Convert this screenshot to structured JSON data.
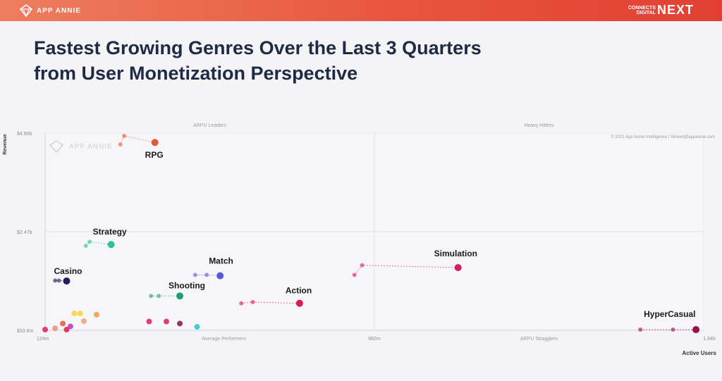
{
  "header": {
    "brand": "APP ANNIE",
    "event_line1": "CONNECTS",
    "event_line2": "DIGITAL",
    "event_big": "NEXT",
    "accent": "#e8553f"
  },
  "slide": {
    "title_line1": "Fastest Growing Genres Over the Last 3 Quarters",
    "title_line2": "from User Monetization Perspective"
  },
  "chart_data": {
    "type": "scatter",
    "title": "",
    "xlabel": "Active Users",
    "ylabel": "Revenue",
    "x_ticks": [
      {
        "value": 124,
        "label": "124m"
      },
      {
        "value": 982,
        "label": "982m"
      },
      {
        "value": 1840,
        "label": "1.84b"
      }
    ],
    "y_ticks": [
      {
        "value": 33.6,
        "label": "$33.6m"
      },
      {
        "value": 2470,
        "label": "$2.47b"
      },
      {
        "value": 4900,
        "label": "$4.90b"
      }
    ],
    "xlim": [
      124,
      1840
    ],
    "ylim": [
      33.6,
      4900
    ],
    "grid": true,
    "quadrants": {
      "top_left": "ARPU Leaders",
      "top_right": "Heavy Hitters",
      "bottom_left": "Average Performers",
      "bottom_right": "ARPU Stragglers"
    },
    "watermark": "APP ANNIE",
    "copyright": "© 2021 App Annie Intelligence | blinked@appannie.com",
    "series": [
      {
        "name": "RPG",
        "color": "#e8553f",
        "points": [
          [
            320,
            4620
          ],
          [
            330,
            4830
          ],
          [
            410,
            4670
          ]
        ]
      },
      {
        "name": "Strategy",
        "color": "#2bbf9c",
        "points": [
          [
            230,
            2120
          ],
          [
            240,
            2220
          ],
          [
            296,
            2150
          ]
        ]
      },
      {
        "name": "Casino",
        "color": "#1e1e5c",
        "points": [
          [
            150,
            1260
          ],
          [
            160,
            1260
          ],
          [
            180,
            1250
          ]
        ]
      },
      {
        "name": "Match",
        "color": "#5a5ad6",
        "points": [
          [
            515,
            1400
          ],
          [
            545,
            1400
          ],
          [
            580,
            1380
          ]
        ]
      },
      {
        "name": "Shooting",
        "color": "#21a06f",
        "points": [
          [
            400,
            880
          ],
          [
            420,
            880
          ],
          [
            475,
            880
          ]
        ]
      },
      {
        "name": "Action",
        "color": "#d91d4e",
        "points": [
          [
            635,
            700
          ],
          [
            665,
            730
          ],
          [
            787,
            700
          ]
        ]
      },
      {
        "name": "Simulation",
        "color": "#d91d5e",
        "points": [
          [
            930,
            1400
          ],
          [
            950,
            1640
          ],
          [
            1200,
            1580
          ]
        ]
      },
      {
        "name": "HyperCasual",
        "color": "#9c0f4a",
        "points": [
          [
            1675,
            50
          ],
          [
            1760,
            50
          ],
          [
            1820,
            50
          ]
        ]
      }
    ],
    "unlabeled_points": [
      {
        "x": 124,
        "y": 50,
        "color": "#d91d5e"
      },
      {
        "x": 150,
        "y": 80,
        "color": "#f28a7a"
      },
      {
        "x": 170,
        "y": 200,
        "color": "#e8553f"
      },
      {
        "x": 190,
        "y": 130,
        "color": "#c22fc9"
      },
      {
        "x": 200,
        "y": 450,
        "color": "#f5d442"
      },
      {
        "x": 215,
        "y": 450,
        "color": "#f5d442"
      },
      {
        "x": 225,
        "y": 260,
        "color": "#f29e7a"
      },
      {
        "x": 258,
        "y": 420,
        "color": "#f39a3a"
      },
      {
        "x": 180,
        "y": 50,
        "color": "#d91d4e"
      },
      {
        "x": 395,
        "y": 250,
        "color": "#d91d5e"
      },
      {
        "x": 440,
        "y": 250,
        "color": "#d91d5e"
      },
      {
        "x": 475,
        "y": 200,
        "color": "#8a1248"
      },
      {
        "x": 520,
        "y": 120,
        "color": "#2bbfc9"
      }
    ],
    "legend": "none"
  }
}
